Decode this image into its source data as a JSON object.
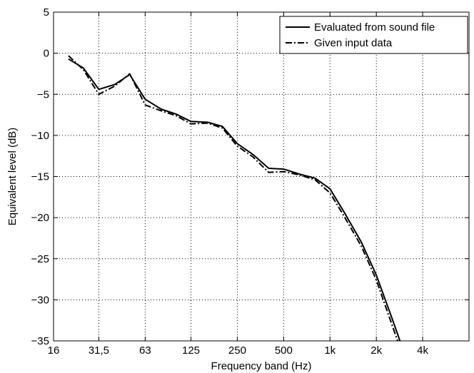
{
  "chart_data": {
    "type": "line",
    "xscale": "log2",
    "xlabel": "Frequency band (Hz)",
    "ylabel": "Equivalent level (dB)",
    "xlim": [
      16,
      8000
    ],
    "ylim": [
      -35,
      5
    ],
    "grid": true,
    "legend_position": "top-right",
    "xticks": [
      {
        "value": 16,
        "label": "16"
      },
      {
        "value": 31.5,
        "label": "31,5"
      },
      {
        "value": 63,
        "label": "63"
      },
      {
        "value": 125,
        "label": "125"
      },
      {
        "value": 250,
        "label": "250"
      },
      {
        "value": 500,
        "label": "500"
      },
      {
        "value": 1000,
        "label": "1k"
      },
      {
        "value": 2000,
        "label": "2k"
      },
      {
        "value": 4000,
        "label": "4k"
      }
    ],
    "yticks": [
      5,
      0,
      -5,
      -10,
      -15,
      -20,
      -25,
      -30,
      -35
    ],
    "series": [
      {
        "name": "Evaluated from sound file",
        "style": "solid",
        "color": "#000000",
        "x": [
          20,
          25,
          31.5,
          40,
          50,
          63,
          80,
          100,
          125,
          160,
          200,
          250,
          315,
          400,
          500,
          630,
          800,
          1000,
          1250,
          1600,
          2000,
          2500,
          2850
        ],
        "y": [
          -0.7,
          -1.8,
          -4.4,
          -3.8,
          -2.6,
          -5.6,
          -6.8,
          -7.4,
          -8.3,
          -8.4,
          -8.9,
          -11.0,
          -12.3,
          -14.0,
          -14.1,
          -14.7,
          -15.2,
          -16.5,
          -19.5,
          -23.0,
          -27.0,
          -32.0,
          -35.0
        ]
      },
      {
        "name": "Given input data",
        "style": "dashdot",
        "color": "#000000",
        "x": [
          20,
          25,
          31.5,
          40,
          50,
          63,
          80,
          100,
          125,
          160,
          200,
          250,
          315,
          400,
          500,
          630,
          800,
          1000,
          1250,
          1600,
          2000,
          2500,
          2750
        ],
        "y": [
          -0.3,
          -2.0,
          -5.0,
          -4.0,
          -2.5,
          -6.3,
          -7.0,
          -7.6,
          -8.6,
          -8.5,
          -9.1,
          -11.3,
          -12.6,
          -14.5,
          -14.4,
          -14.8,
          -15.4,
          -17.0,
          -20.0,
          -23.5,
          -27.6,
          -32.8,
          -35.0
        ]
      }
    ]
  }
}
